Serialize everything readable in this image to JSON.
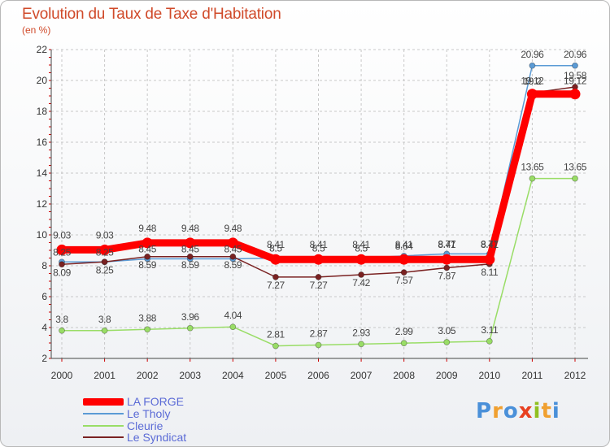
{
  "chart_data": {
    "type": "line",
    "title": "Evolution du Taux de Taxe d'Habitation",
    "subtitle": "(en %)",
    "x": [
      "2000",
      "2001",
      "2002",
      "2003",
      "2004",
      "2005",
      "2006",
      "2007",
      "2008",
      "2009",
      "2010",
      "2011",
      "2012"
    ],
    "ylim": [
      2,
      22
    ],
    "yticks": [
      "2",
      "4",
      "6",
      "8",
      "10",
      "12",
      "14",
      "16",
      "18",
      "20",
      "22"
    ],
    "grid": true,
    "legend_position": "bottom-left",
    "series": [
      {
        "name": "LA FORGE",
        "color": "#ff0000",
        "values": [
          9.03,
          9.03,
          9.48,
          9.48,
          9.48,
          8.41,
          8.41,
          8.41,
          8.41,
          8.41,
          8.41,
          19.12,
          19.12
        ],
        "labels": [
          "9.03",
          "9.03",
          "9.48",
          "9.48",
          "9.48",
          "8.41",
          "8.41",
          "8.41",
          "8.41",
          "8.41",
          "8.41",
          "19.12",
          "19.12"
        ]
      },
      {
        "name": "Le Tholy",
        "color": "#5b9bd5",
        "values": [
          8.25,
          8.25,
          8.45,
          8.45,
          8.45,
          8.5,
          8.5,
          8.5,
          8.64,
          8.77,
          8.77,
          20.96,
          20.96
        ],
        "labels": [
          "8.25",
          "8.25",
          "8.45",
          "8.45",
          "8.45",
          "8.5",
          "8.5",
          "8.5",
          "8.64",
          "8.77",
          "8.77",
          "20.96",
          "20.96"
        ]
      },
      {
        "name": "Cleurie",
        "color": "#99dd66",
        "values": [
          3.8,
          3.8,
          3.88,
          3.96,
          4.04,
          2.81,
          2.87,
          2.93,
          2.99,
          3.05,
          3.11,
          13.65,
          13.65
        ],
        "labels": [
          "3.8",
          "3.8",
          "3.88",
          "3.96",
          "4.04",
          "2.81",
          "2.87",
          "2.93",
          "2.99",
          "3.05",
          "3.11",
          "13.65",
          "13.65"
        ]
      },
      {
        "name": "Le Syndicat",
        "color": "#7a2222",
        "values": [
          8.09,
          8.25,
          8.59,
          8.59,
          8.59,
          7.27,
          7.27,
          7.42,
          7.57,
          7.87,
          8.11,
          19.2,
          19.58
        ],
        "labels": [
          "8.09",
          "8.25",
          "8.59",
          "8.59",
          "8.59",
          "7.27",
          "7.27",
          "7.42",
          "7.57",
          "7.87",
          "8.11",
          "19.2",
          "19.58"
        ]
      }
    ]
  },
  "legend": {
    "items": [
      "LA FORGE",
      "Le Tholy",
      "Cleurie",
      "Le Syndicat"
    ]
  },
  "brand": {
    "letters": [
      "P",
      "r",
      "o",
      "x",
      "i",
      "t",
      "i"
    ],
    "colors": [
      "#4a90d9",
      "#f0a030",
      "#4a90d9",
      "#e84020",
      "#90c020",
      "#f0a030",
      "#4a90d9"
    ]
  }
}
